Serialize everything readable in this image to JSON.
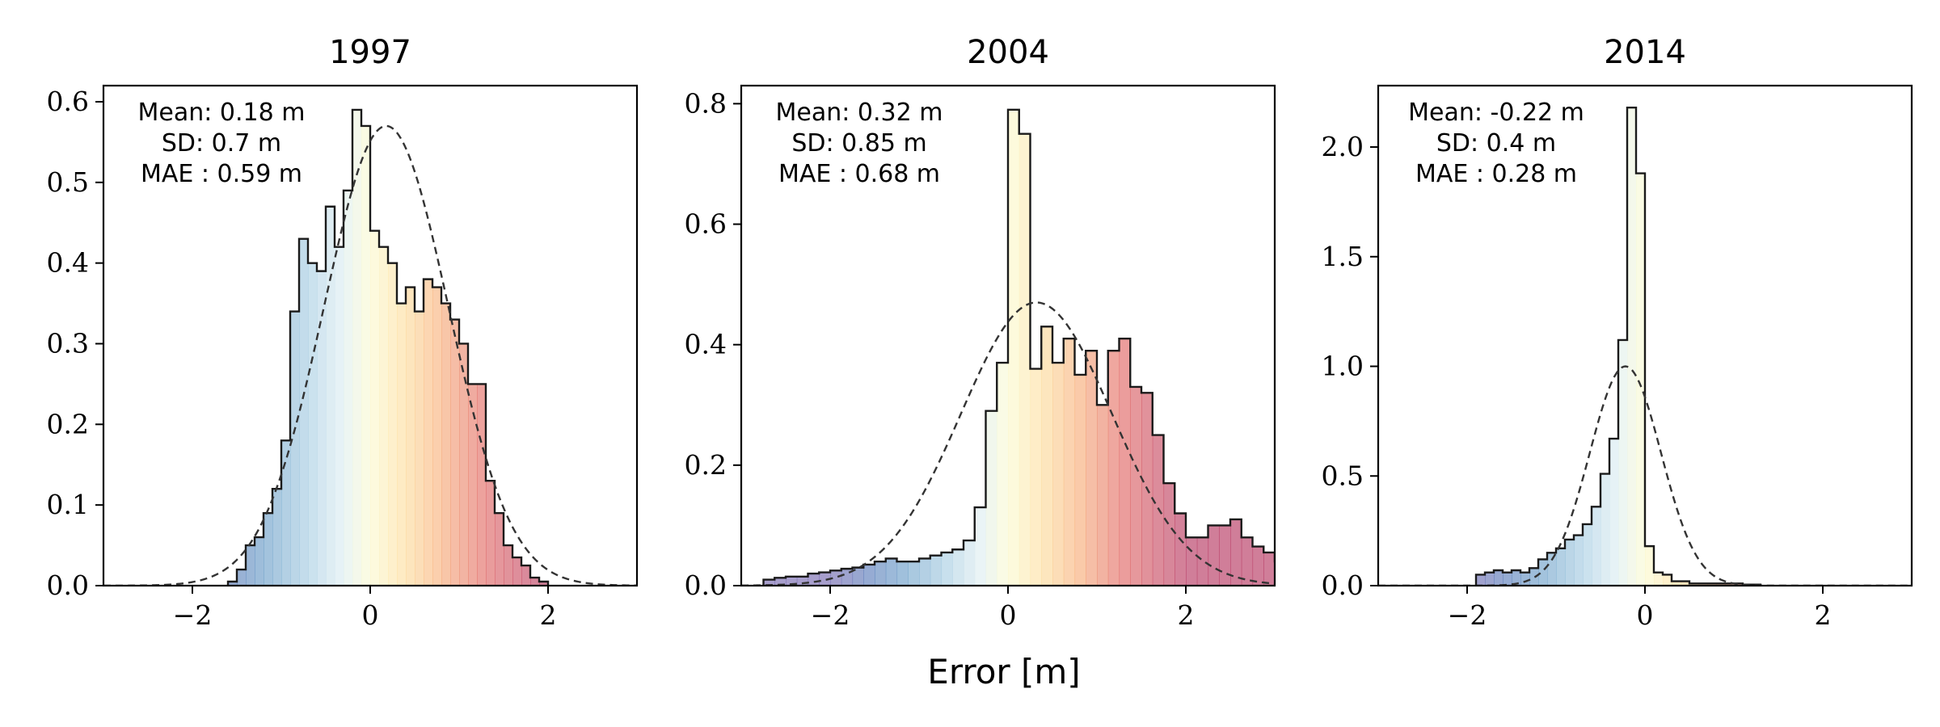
{
  "figure": {
    "shared_xlabel": "Error [m]"
  },
  "chart_data": [
    {
      "type": "bar",
      "title": "1997",
      "xlabel": "",
      "ylabel": "",
      "xlim": [
        -3,
        3
      ],
      "ylim": [
        0,
        0.62
      ],
      "xticks": [
        -2,
        0,
        2
      ],
      "yticks": [
        0.0,
        0.1,
        0.2,
        0.3,
        0.4,
        0.5,
        0.6
      ],
      "xtick_labels": [
        "−2",
        "0",
        "2"
      ],
      "ytick_labels": [
        "0.0",
        "0.1",
        "0.2",
        "0.3",
        "0.4",
        "0.5",
        "0.6"
      ],
      "bin_width": 0.1,
      "bin_start": -1.6,
      "values": [
        0.005,
        0.02,
        0.05,
        0.06,
        0.09,
        0.12,
        0.18,
        0.34,
        0.43,
        0.4,
        0.39,
        0.47,
        0.42,
        0.49,
        0.59,
        0.57,
        0.44,
        0.42,
        0.4,
        0.35,
        0.37,
        0.34,
        0.38,
        0.37,
        0.35,
        0.33,
        0.3,
        0.25,
        0.25,
        0.13,
        0.09,
        0.05,
        0.035,
        0.025,
        0.01,
        0.005
      ],
      "fitted_normal": {
        "mean": 0.18,
        "sd": 0.7,
        "peak": 0.57
      },
      "stats": [
        "Mean: 0.18 m",
        "SD: 0.7 m",
        "MAE : 0.59 m"
      ],
      "grid": false,
      "legend": "none"
    },
    {
      "type": "bar",
      "title": "2004",
      "xlabel": "Error [m]",
      "ylabel": "",
      "xlim": [
        -3,
        3
      ],
      "ylim": [
        0,
        0.83
      ],
      "xticks": [
        -2,
        0,
        2
      ],
      "yticks": [
        0.0,
        0.2,
        0.4,
        0.6,
        0.8
      ],
      "xtick_labels": [
        "−2",
        "0",
        "2"
      ],
      "ytick_labels": [
        "0.0",
        "0.2",
        "0.4",
        "0.6",
        "0.8"
      ],
      "bin_width": 0.125,
      "bin_start": -2.75,
      "values": [
        0.01,
        0.013,
        0.015,
        0.015,
        0.02,
        0.022,
        0.025,
        0.028,
        0.03,
        0.035,
        0.04,
        0.045,
        0.04,
        0.04,
        0.045,
        0.05,
        0.055,
        0.06,
        0.075,
        0.13,
        0.29,
        0.37,
        0.79,
        0.75,
        0.36,
        0.43,
        0.37,
        0.41,
        0.35,
        0.39,
        0.3,
        0.39,
        0.41,
        0.33,
        0.32,
        0.25,
        0.17,
        0.12,
        0.08,
        0.08,
        0.1,
        0.1,
        0.11,
        0.08,
        0.065,
        0.055,
        0.04,
        0.04,
        0.04,
        0.015,
        0.01
      ],
      "fitted_normal": {
        "mean": 0.32,
        "sd": 0.85,
        "peak": 0.47
      },
      "stats": [
        "Mean: 0.32 m",
        "SD: 0.85 m",
        "MAE : 0.68 m"
      ],
      "grid": false,
      "legend": "none"
    },
    {
      "type": "bar",
      "title": "2014",
      "xlabel": "",
      "ylabel": "",
      "xlim": [
        -3,
        3
      ],
      "ylim": [
        0,
        2.28
      ],
      "xticks": [
        -2,
        0,
        2
      ],
      "yticks": [
        0.0,
        0.5,
        1.0,
        1.5,
        2.0
      ],
      "xtick_labels": [
        "−2",
        "0",
        "2"
      ],
      "ytick_labels": [
        "0.0",
        "0.5",
        "1.0",
        "1.5",
        "2.0"
      ],
      "bin_width": 0.1,
      "bin_start": -1.9,
      "values": [
        0.05,
        0.06,
        0.07,
        0.06,
        0.07,
        0.06,
        0.08,
        0.12,
        0.15,
        0.17,
        0.21,
        0.23,
        0.28,
        0.36,
        0.51,
        0.67,
        1.12,
        2.18,
        1.88,
        0.18,
        0.06,
        0.05,
        0.02,
        0.02,
        0.01,
        0.01,
        0.01,
        0.01,
        0.01,
        0.01,
        0.005,
        0.005
      ],
      "fitted_normal": {
        "mean": -0.22,
        "sd": 0.4,
        "peak": 1.0
      },
      "stats": [
        "Mean: -0.22 m",
        "SD: 0.4 m",
        "MAE : 0.28 m"
      ],
      "grid": false,
      "legend": "none"
    }
  ]
}
